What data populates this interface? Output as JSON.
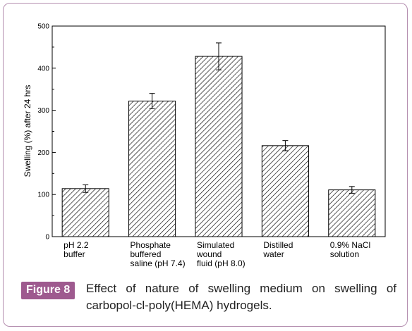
{
  "figure": {
    "label": "Figure 8",
    "caption": "Effect of nature of swelling medium on swelling of carbopol-cl-poly(HEMA) hydrogels."
  },
  "chart_data": {
    "type": "bar",
    "title": "",
    "xlabel": "",
    "ylabel": "Swelling (%) after 24 hrs",
    "ylim": [
      0,
      500
    ],
    "yticks": [
      0,
      100,
      200,
      300,
      400,
      500
    ],
    "categories": [
      [
        "pH 2.2",
        "buffer"
      ],
      [
        "Phosphate",
        "buffered",
        "saline (pH 7.4)"
      ],
      [
        "Simulated",
        "wound",
        "fluid (pH 8.0)"
      ],
      [
        "Distilled",
        "water"
      ],
      [
        "0.9% NaCl",
        "solution"
      ]
    ],
    "values": [
      114,
      322,
      428,
      216,
      111
    ],
    "errors": [
      9,
      18,
      32,
      12,
      8
    ],
    "bar_style": "diagonal-hatch",
    "grid": false,
    "legend": false,
    "colors": {
      "bar_stroke": "#000000",
      "hatch": "#000000",
      "frame": "#b58fb0",
      "label_bg": "#9e5a8f"
    }
  }
}
